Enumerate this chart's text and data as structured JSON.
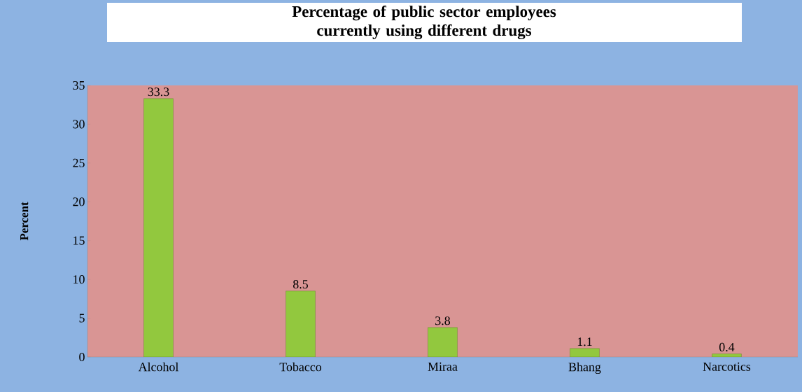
{
  "chart_data": {
    "type": "bar",
    "title": "Percentage of public sector employees currently using different drugs",
    "ylabel": "Percent",
    "categories": [
      "Alcohol",
      "Tobacco",
      "Miraa",
      "Bhang",
      "Narcotics"
    ],
    "values": [
      33.3,
      8.5,
      3.8,
      1.1,
      0.4
    ],
    "color": "#92c83e",
    "ylim": [
      0,
      35
    ],
    "yticks": [
      0,
      5,
      10,
      15,
      20,
      25,
      30,
      35
    ],
    "data_labels": true,
    "grid": false
  }
}
